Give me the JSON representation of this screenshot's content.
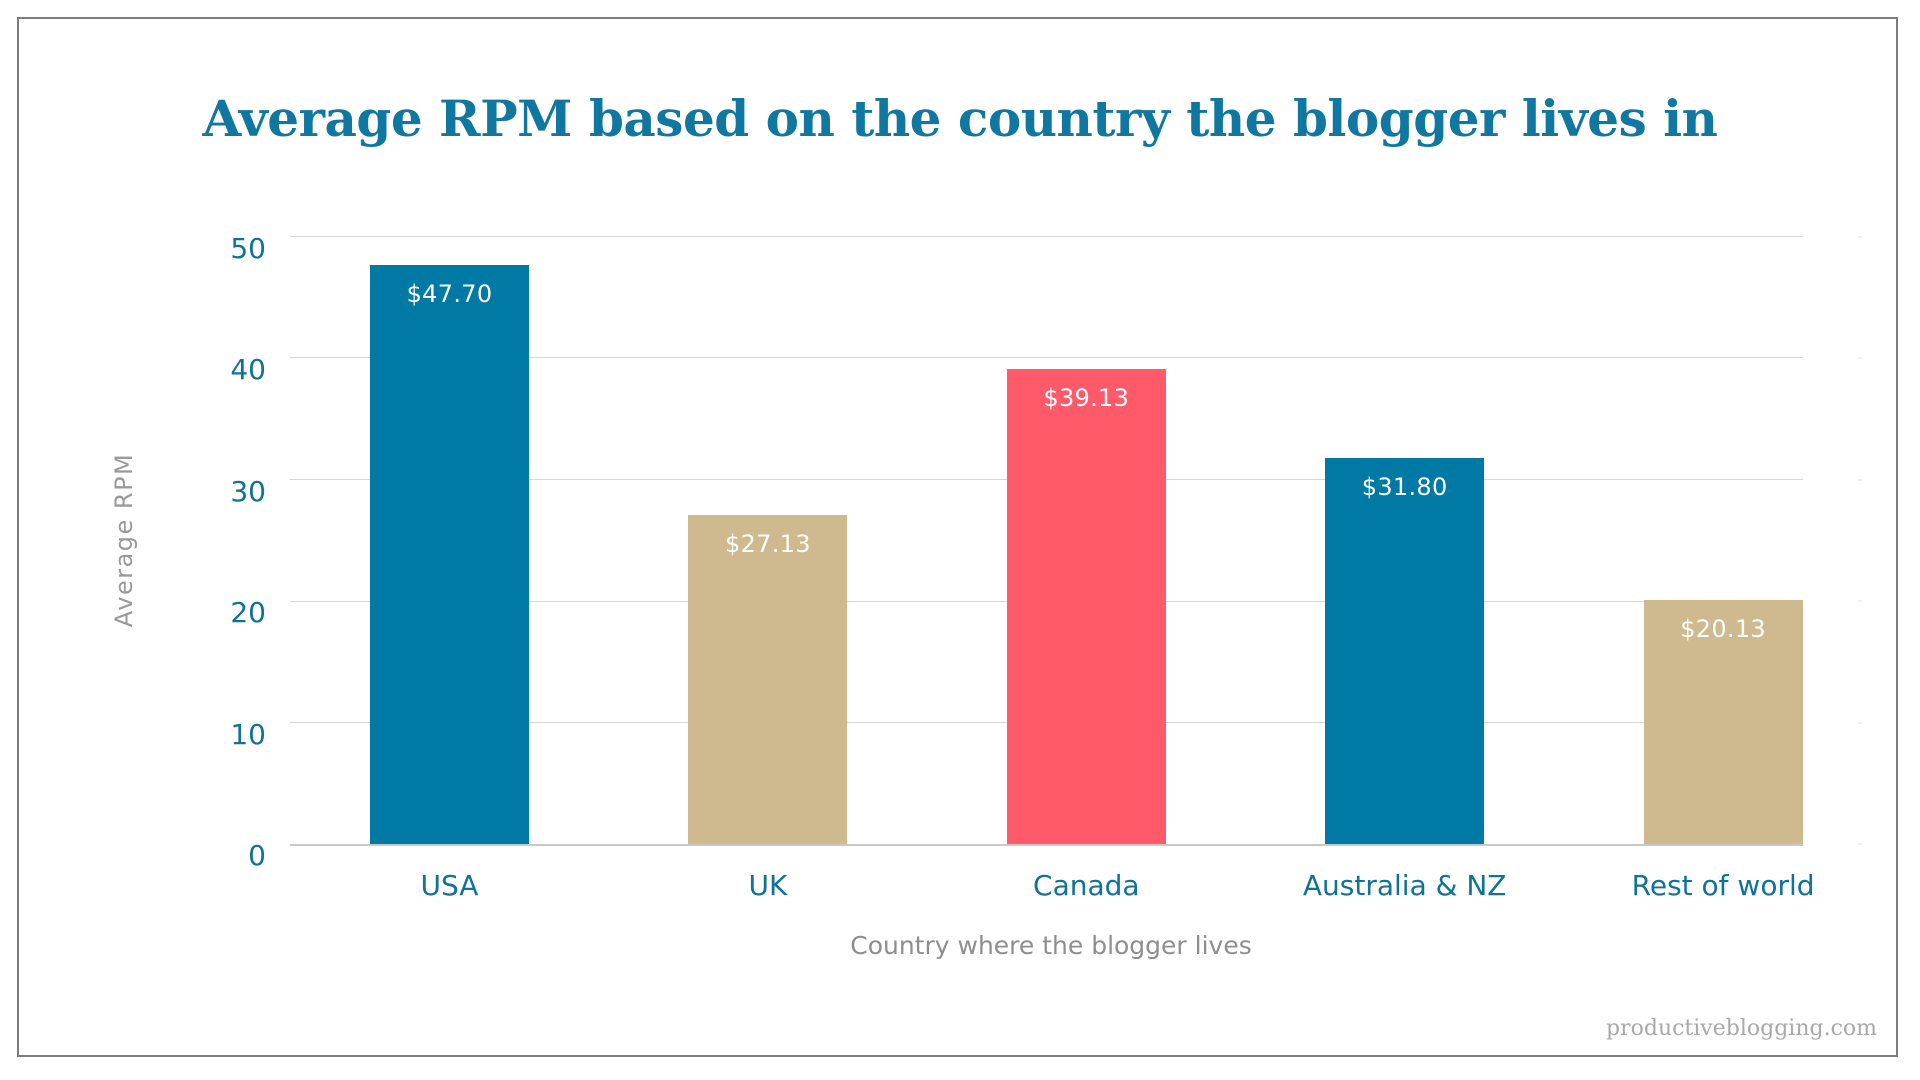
{
  "colors": {
    "title": "#0f77a0",
    "axis_text": "#0e7299",
    "axis_title": "#8e8e8e",
    "blue": "#0079a5",
    "tan": "#cfba8f",
    "red": "#ff5a6a",
    "grid": "#d6d6d6",
    "border": "#7d7d7d",
    "watermark": "#a9a9a9"
  },
  "header": {
    "title": "Average RPM based on the country the blogger lives in"
  },
  "axes": {
    "y_title": "Average RPM",
    "x_title": "Country where the blogger lives",
    "y_ticks": [
      "0",
      "10",
      "20",
      "30",
      "40",
      "50"
    ]
  },
  "bars": [
    {
      "category": "USA",
      "value": 47.7,
      "label": "$47.70",
      "color": "#0079a5"
    },
    {
      "category": "UK",
      "value": 27.13,
      "label": "$27.13",
      "color": "#cfba8f"
    },
    {
      "category": "Canada",
      "value": 39.13,
      "label": "$39.13",
      "color": "#ff5a6a"
    },
    {
      "category": "Australia & NZ",
      "value": 31.8,
      "label": "$31.80",
      "color": "#0079a5"
    },
    {
      "category": "Rest of world",
      "value": 20.13,
      "label": "$20.13",
      "color": "#cfba8f"
    }
  ],
  "footer": {
    "watermark": "productiveblogging.com"
  },
  "chart_data": {
    "type": "bar",
    "title": "Average RPM based on the country the blogger lives in",
    "categories": [
      "USA",
      "UK",
      "Canada",
      "Australia & NZ",
      "Rest of world"
    ],
    "values": [
      47.7,
      27.13,
      39.13,
      31.8,
      20.13
    ],
    "data_labels": [
      "$47.70",
      "$27.13",
      "$39.13",
      "$31.80",
      "$20.13"
    ],
    "bar_colors": [
      "#0079a5",
      "#cfba8f",
      "#ff5a6a",
      "#0079a5",
      "#cfba8f"
    ],
    "xlabel": "Country where the blogger lives",
    "ylabel": "Average RPM",
    "ylim": [
      0,
      50
    ],
    "yticks": [
      0,
      10,
      20,
      30,
      40,
      50
    ],
    "grid": true,
    "legend": "none",
    "annotations": [
      "productiveblogging.com"
    ]
  }
}
